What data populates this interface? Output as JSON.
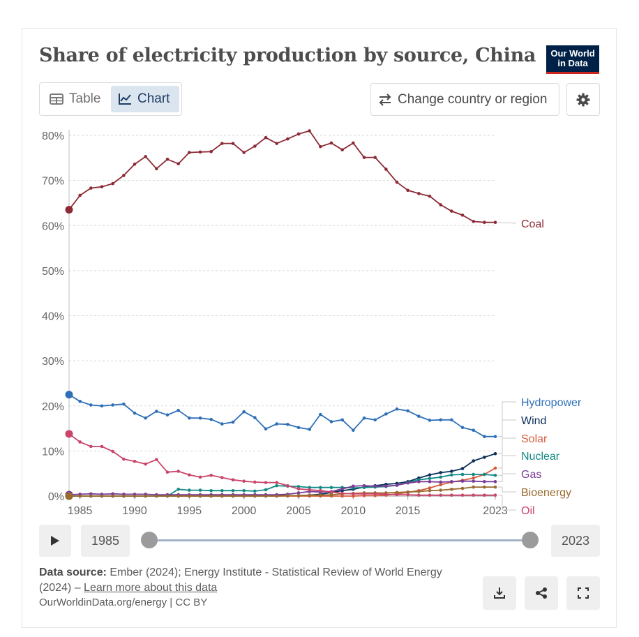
{
  "header": {
    "title": "Share of electricity production by source, China",
    "logo_line1": "Our World",
    "logo_line2": "in Data"
  },
  "tabs": {
    "table_label": "Table",
    "chart_label": "Chart"
  },
  "controls": {
    "change_country_label": "Change country or region"
  },
  "timeline": {
    "start_label": "1985",
    "end_label": "2023"
  },
  "footer": {
    "source_label": "Data source:",
    "source_text": "Ember (2024); Energy Institute - Statistical Review of World Energy (2024) –",
    "learn_more": "Learn more about this data",
    "license": "OurWorldinData.org/energy | CC BY"
  },
  "colors": {
    "coal": "#8c2a35",
    "hydropower": "#2e6fb8",
    "wind": "#0c2f5a",
    "solar": "#d35b3d",
    "nuclear": "#138a85",
    "gas": "#7a3b95",
    "bioenergy": "#9a6a2e",
    "oil": "#c9456a",
    "grid": "#d7d7d7",
    "axis": "#bdbdbd"
  },
  "chart_data": {
    "type": "line",
    "title": "Share of electricity production by source, China",
    "xlabel": "",
    "ylabel": "",
    "xlim": [
      1984,
      2023
    ],
    "ylim": [
      0,
      80
    ],
    "y_ticks": [
      0,
      10,
      20,
      30,
      40,
      50,
      60,
      70,
      80
    ],
    "y_tick_labels": [
      "0%",
      "10%",
      "20%",
      "30%",
      "40%",
      "50%",
      "60%",
      "70%",
      "80%"
    ],
    "x_ticks": [
      1985,
      1990,
      1995,
      2000,
      2005,
      2010,
      2015,
      2023
    ],
    "x_tick_labels": [
      "1985",
      "1990",
      "1995",
      "2000",
      "2005",
      "2010",
      "2015",
      "2023"
    ],
    "x": [
      1984,
      1985,
      1986,
      1987,
      1988,
      1989,
      1990,
      1991,
      1992,
      1993,
      1994,
      1995,
      1996,
      1997,
      1998,
      1999,
      2000,
      2001,
      2002,
      2003,
      2004,
      2005,
      2006,
      2007,
      2008,
      2009,
      2010,
      2011,
      2012,
      2013,
      2014,
      2015,
      2016,
      2017,
      2018,
      2019,
      2020,
      2021,
      2022,
      2023
    ],
    "series": [
      {
        "name": "Coal",
        "color": "#8c2a35",
        "values": [
          63.5,
          66.7,
          68.3,
          68.6,
          69.3,
          71.1,
          73.6,
          75.3,
          72.6,
          74.7,
          73.7,
          76.2,
          76.3,
          76.4,
          78.2,
          78.2,
          76.2,
          77.6,
          79.5,
          78.2,
          79.2,
          80.3,
          81.0,
          77.5,
          78.3,
          76.8,
          78.3,
          75.1,
          75.1,
          72.5,
          69.6,
          67.8,
          67.1,
          66.5,
          64.6,
          63.2,
          62.3,
          60.9,
          60.7,
          60.7
        ]
      },
      {
        "name": "Hydropower",
        "color": "#2e6fb8",
        "values": [
          22.5,
          21.0,
          20.2,
          20.0,
          20.2,
          20.4,
          18.4,
          17.3,
          18.8,
          18.0,
          19.0,
          17.3,
          17.3,
          17.0,
          16.0,
          16.4,
          18.7,
          17.4,
          14.9,
          16.0,
          15.9,
          15.2,
          14.8,
          18.1,
          16.5,
          16.9,
          14.6,
          17.3,
          16.9,
          18.2,
          19.3,
          18.9,
          17.7,
          16.8,
          16.9,
          16.9,
          15.2,
          14.6,
          13.2,
          13.2
        ]
      },
      {
        "name": "Wind",
        "color": "#0c2f5a",
        "values": [
          0,
          0,
          0,
          0,
          0,
          0,
          0,
          0,
          0,
          0,
          0,
          0,
          0,
          0,
          0,
          0,
          0.1,
          0.1,
          0.1,
          0.1,
          0.1,
          0.1,
          0.2,
          0.4,
          0.8,
          1.2,
          1.5,
          2.0,
          2.3,
          2.6,
          2.8,
          3.2,
          4.0,
          4.7,
          5.2,
          5.5,
          6.1,
          7.8,
          8.6,
          9.4
        ]
      },
      {
        "name": "Solar",
        "color": "#d35b3d",
        "values": [
          0,
          0,
          0,
          0,
          0,
          0,
          0,
          0,
          0,
          0,
          0,
          0,
          0,
          0,
          0,
          0,
          0,
          0,
          0,
          0,
          0,
          0,
          0,
          0,
          0,
          0,
          0,
          0.1,
          0.1,
          0.2,
          0.5,
          0.8,
          1.2,
          1.8,
          2.5,
          3.1,
          3.5,
          4.0,
          4.8,
          6.2
        ]
      },
      {
        "name": "Nuclear",
        "color": "#138a85",
        "values": [
          0,
          0,
          0,
          0,
          0,
          0,
          0,
          0,
          0,
          0,
          1.5,
          1.3,
          1.3,
          1.2,
          1.2,
          1.2,
          1.2,
          1.1,
          1.4,
          2.3,
          2.2,
          2.1,
          1.9,
          1.9,
          1.9,
          1.9,
          1.8,
          1.9,
          2.0,
          2.1,
          2.4,
          3.0,
          3.6,
          3.9,
          4.2,
          4.7,
          4.8,
          4.8,
          4.8,
          4.6
        ]
      },
      {
        "name": "Gas",
        "color": "#7a3b95",
        "values": [
          0.3,
          0.4,
          0.5,
          0.4,
          0.5,
          0.4,
          0.4,
          0.4,
          0.3,
          0.3,
          0.3,
          0.3,
          0.3,
          0.3,
          0.3,
          0.3,
          0.3,
          0.3,
          0.3,
          0.3,
          0.4,
          0.7,
          1.0,
          0.9,
          1.0,
          1.6,
          2.2,
          2.3,
          2.2,
          2.2,
          2.4,
          2.9,
          3.2,
          3.2,
          3.1,
          3.2,
          3.3,
          3.3,
          3.2,
          3.2
        ]
      },
      {
        "name": "Bioenergy",
        "color": "#9a6a2e",
        "values": [
          0,
          0,
          0,
          0,
          0,
          0,
          0,
          0,
          0,
          0,
          0,
          0,
          0,
          0,
          0,
          0,
          0,
          0,
          0,
          0,
          0.1,
          0.1,
          0.2,
          0.2,
          0.3,
          0.5,
          0.6,
          0.7,
          0.7,
          0.7,
          0.8,
          0.9,
          1.0,
          1.2,
          1.3,
          1.5,
          1.7,
          2.0,
          2.0,
          2.0
        ]
      },
      {
        "name": "Oil",
        "color": "#c9456a",
        "values": [
          13.8,
          12.0,
          11.0,
          11.0,
          9.9,
          8.2,
          7.7,
          7.1,
          8.1,
          5.3,
          5.5,
          4.7,
          4.2,
          4.6,
          4.1,
          3.6,
          3.3,
          3.1,
          3.0,
          3.0,
          2.3,
          1.6,
          1.4,
          1.2,
          0.9,
          0.6,
          0.5,
          0.5,
          0.5,
          0.4,
          0.3,
          0.3,
          0.2,
          0.2,
          0.2,
          0.2,
          0.2,
          0.2,
          0.2,
          0.2
        ]
      }
    ]
  }
}
